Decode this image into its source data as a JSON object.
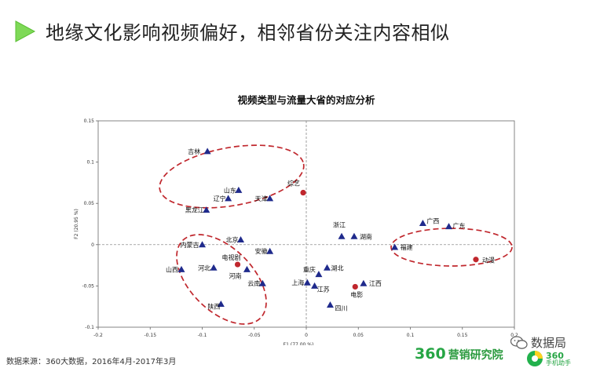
{
  "slide": {
    "title": "地缘文化影响视频偏好，相邻省份关注内容相似",
    "source": "数据来源：360大数据，2016年4月-2017年3月"
  },
  "branding": {
    "logo_number": "360",
    "logo_text": "营销研究院",
    "wechat_text": "数据局",
    "assistant_number": "360",
    "assistant_text": "手机助手",
    "accent_color": "#22b14c"
  },
  "chart_data": {
    "type": "scatter",
    "title": "视频类型与流量大省的对应分析",
    "xlabel": "F1 (77.00 %)",
    "ylabel": "F2 (20.95 %)",
    "xlim": [
      -0.2,
      0.2
    ],
    "ylim": [
      -0.1,
      0.15
    ],
    "xticks": [
      "-0.2",
      "-0.15",
      "-0.1",
      "-0.05",
      "0",
      "0.05",
      "0.1",
      "0.15",
      "0.2"
    ],
    "yticks": [
      "-0.1",
      "-0.05",
      "0",
      "0.05",
      "0.1",
      "0.15"
    ],
    "grid": false,
    "origin_axes": "dashed",
    "series": [
      {
        "marker": "triangle",
        "color": "#1f2a8c",
        "points": [
          {
            "label": "吉林",
            "x": -0.095,
            "y": 0.113
          },
          {
            "label": "山东",
            "x": -0.065,
            "y": 0.066
          },
          {
            "label": "辽宁",
            "x": -0.075,
            "y": 0.056
          },
          {
            "label": "天津",
            "x": -0.035,
            "y": 0.056
          },
          {
            "label": "黑龙江",
            "x": -0.096,
            "y": 0.042
          },
          {
            "label": "北京",
            "x": -0.063,
            "y": 0.006
          },
          {
            "label": "内蒙古",
            "x": -0.1,
            "y": 0.0
          },
          {
            "label": "安徽",
            "x": -0.035,
            "y": -0.008
          },
          {
            "label": "山西",
            "x": -0.12,
            "y": -0.03
          },
          {
            "label": "河北",
            "x": -0.089,
            "y": -0.028
          },
          {
            "label": "河南",
            "x": -0.057,
            "y": -0.03
          },
          {
            "label": "云南",
            "x": -0.042,
            "y": -0.047
          },
          {
            "label": "陕西",
            "x": -0.082,
            "y": -0.072
          },
          {
            "label": "浙江",
            "x": 0.034,
            "y": 0.01
          },
          {
            "label": "湖南",
            "x": 0.046,
            "y": 0.01
          },
          {
            "label": "重庆",
            "x": 0.012,
            "y": -0.036
          },
          {
            "label": "湖北",
            "x": 0.02,
            "y": -0.028
          },
          {
            "label": "上海",
            "x": 0.001,
            "y": -0.046
          },
          {
            "label": "江苏",
            "x": 0.008,
            "y": -0.05
          },
          {
            "label": "江西",
            "x": 0.055,
            "y": -0.047
          },
          {
            "label": "四川",
            "x": 0.023,
            "y": -0.073
          },
          {
            "label": "广西",
            "x": 0.112,
            "y": 0.026
          },
          {
            "label": "广东",
            "x": 0.137,
            "y": 0.022
          },
          {
            "label": "福建",
            "x": 0.085,
            "y": -0.003
          }
        ]
      },
      {
        "marker": "circle",
        "color": "#c0272d",
        "points": [
          {
            "label": "综艺",
            "x": -0.003,
            "y": 0.063
          },
          {
            "label": "电视剧",
            "x": -0.066,
            "y": -0.024
          },
          {
            "label": "电影",
            "x": 0.047,
            "y": -0.051
          },
          {
            "label": "动漫",
            "x": 0.163,
            "y": -0.018
          }
        ]
      }
    ],
    "annotations": [
      {
        "shape": "dashed-ellipse",
        "color": "#c0272d",
        "encloses": [
          "吉林",
          "山东",
          "辽宁",
          "天津",
          "黑龙江",
          "综艺"
        ]
      },
      {
        "shape": "dashed-ellipse",
        "color": "#c0272d",
        "encloses": [
          "内蒙古",
          "山西",
          "河北",
          "河南",
          "云南",
          "陕西",
          "电视剧"
        ]
      },
      {
        "shape": "dashed-ellipse",
        "color": "#c0272d",
        "encloses": [
          "广西",
          "广东",
          "福建",
          "动漫"
        ]
      }
    ]
  }
}
